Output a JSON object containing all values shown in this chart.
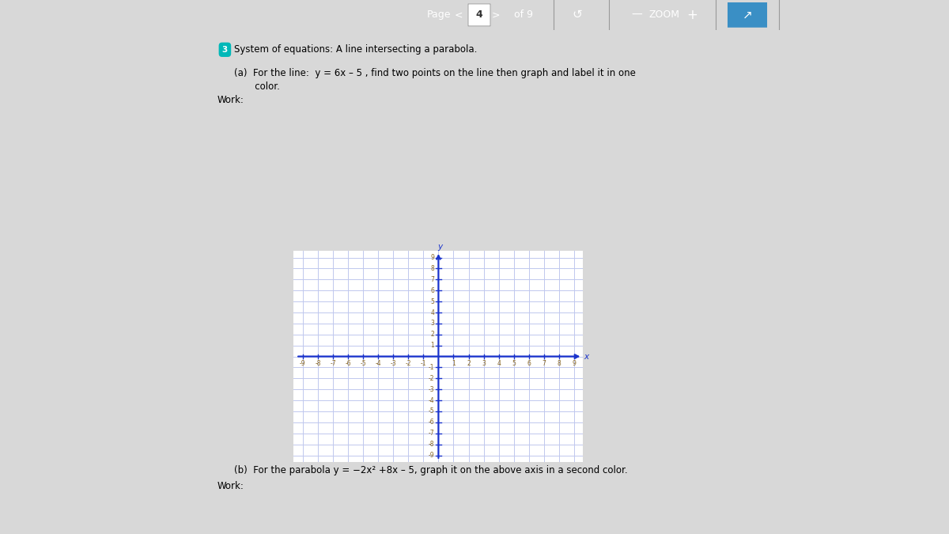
{
  "page_bg": "#d8d8d8",
  "content_bg": "#ffffff",
  "left_panel_bg": "#d8d8d8",
  "right_panel_bg": "#d8d8d8",
  "header_bg": "#5d6470",
  "header_text_color": "#ffffff",
  "page_text": "Page",
  "page_num": "4",
  "of_text": "of 9",
  "zoom_text": "ZOOM",
  "question_num_bg": "#00b8b8",
  "question_num_text": "3",
  "question_title": "System of equations: A line intersecting a parabola.",
  "part_a_line1": "(a)  For the line:  y = 6x – 5 , find two points on the line then graph and label it in one",
  "part_a_line2": "       color.",
  "work_label": "Work:",
  "part_b_text": "(b)  For the parabola y = −2x² +8x – 5, graph it on the above axis in a second color.",
  "work_label2": "Work:",
  "axis_color": "#1a33cc",
  "grid_color": "#c0c8ee",
  "tick_label_color": "#886622",
  "xmin": -9,
  "xmax": 9,
  "ymin": -9,
  "ymax": 9
}
